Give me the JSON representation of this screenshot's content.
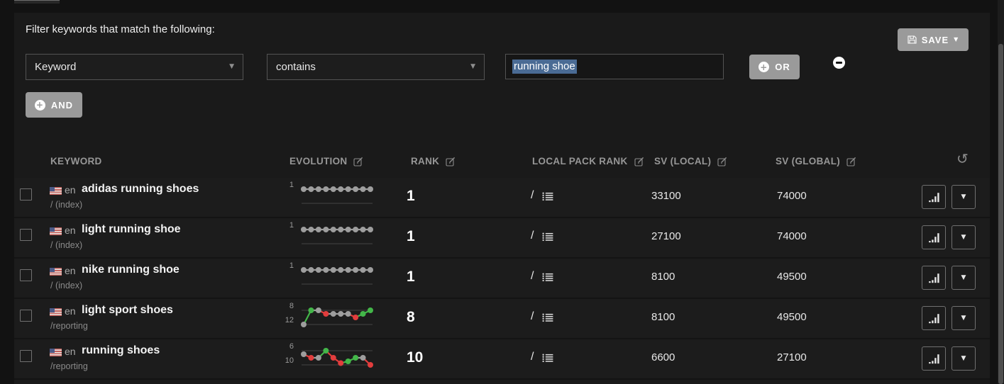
{
  "filter": {
    "title": "Filter keywords that match the following:",
    "field_select": {
      "value": "Keyword"
    },
    "operator_select": {
      "value": "contains"
    },
    "value_input": {
      "value": "running shoe"
    },
    "or_label": "OR",
    "and_label": "AND",
    "save_label": "SAVE"
  },
  "icons": {
    "plus": "+",
    "caret_down": "▼",
    "refresh": "↺"
  },
  "colors": {
    "selection_blue": "#4a6b94",
    "button_gray": "#9a9a9a",
    "spark_flat": "#9e9e9e",
    "spark_up": "#43b649",
    "spark_down": "#e23d3d",
    "row_bg": "#1c1c1c",
    "panel_bg": "#1a1a1a"
  },
  "table": {
    "headers": [
      {
        "label": "KEYWORD",
        "editable": false
      },
      {
        "label": "EVOLUTION",
        "editable": true
      },
      {
        "label": "RANK",
        "editable": true
      },
      {
        "label": "LOCAL PACK RANK",
        "editable": true
      },
      {
        "label": "SV (LOCAL)",
        "editable": true
      },
      {
        "label": "SV (GLOBAL)",
        "editable": true
      }
    ],
    "rows": [
      {
        "lang": "en",
        "keyword": "adidas running shoes",
        "path": "/ (index)",
        "rank": "1",
        "local_pack_rank": "/",
        "sv_local": "33100",
        "sv_global": "74000",
        "evolution": {
          "ylabels": [
            "1"
          ],
          "values": [
            1,
            1,
            1,
            1,
            1,
            1,
            1,
            1,
            1,
            1
          ],
          "colors": [
            "flat",
            "flat",
            "flat",
            "flat",
            "flat",
            "flat",
            "flat",
            "flat",
            "flat",
            "flat"
          ]
        }
      },
      {
        "lang": "en",
        "keyword": "light running shoe",
        "path": "/ (index)",
        "rank": "1",
        "local_pack_rank": "/",
        "sv_local": "27100",
        "sv_global": "74000",
        "evolution": {
          "ylabels": [
            "1"
          ],
          "values": [
            1,
            1,
            1,
            1,
            1,
            1,
            1,
            1,
            1,
            1
          ],
          "colors": [
            "flat",
            "flat",
            "flat",
            "flat",
            "flat",
            "flat",
            "flat",
            "flat",
            "flat",
            "flat"
          ]
        }
      },
      {
        "lang": "en",
        "keyword": "nike running shoe",
        "path": "/ (index)",
        "rank": "1",
        "local_pack_rank": "/",
        "sv_local": "8100",
        "sv_global": "49500",
        "evolution": {
          "ylabels": [
            "1"
          ],
          "values": [
            1,
            1,
            1,
            1,
            1,
            1,
            1,
            1,
            1,
            1
          ],
          "colors": [
            "flat",
            "flat",
            "flat",
            "flat",
            "flat",
            "flat",
            "flat",
            "flat",
            "flat",
            "flat"
          ]
        }
      },
      {
        "lang": "en",
        "keyword": "light sport shoes",
        "path": "/reporting",
        "rank": "8",
        "local_pack_rank": "/",
        "sv_local": "8100",
        "sv_global": "49500",
        "evolution": {
          "ylabels": [
            "8",
            "12"
          ],
          "values": [
            12,
            8,
            8,
            9,
            9,
            9,
            9,
            10,
            9,
            8
          ],
          "colors": [
            "flat",
            "up",
            "flat",
            "down",
            "flat",
            "flat",
            "flat",
            "down",
            "up",
            "up"
          ]
        }
      },
      {
        "lang": "en",
        "keyword": "running shoes",
        "path": "/reporting",
        "rank": "10",
        "local_pack_rank": "/",
        "sv_local": "6600",
        "sv_global": "27100",
        "evolution": {
          "ylabels": [
            "6",
            "10"
          ],
          "values": [
            7,
            8,
            8,
            6,
            8,
            9.5,
            9,
            8,
            8,
            10
          ],
          "colors": [
            "flat",
            "down",
            "flat",
            "up",
            "down",
            "down",
            "up",
            "up",
            "flat",
            "down"
          ]
        }
      }
    ]
  },
  "chart_data": [
    {
      "type": "line",
      "title": "adidas running shoes rank evolution",
      "ylabels": [
        1
      ],
      "values": [
        1,
        1,
        1,
        1,
        1,
        1,
        1,
        1,
        1,
        1
      ]
    },
    {
      "type": "line",
      "title": "light running shoe rank evolution",
      "ylabels": [
        1
      ],
      "values": [
        1,
        1,
        1,
        1,
        1,
        1,
        1,
        1,
        1,
        1
      ]
    },
    {
      "type": "line",
      "title": "nike running shoe rank evolution",
      "ylabels": [
        1
      ],
      "values": [
        1,
        1,
        1,
        1,
        1,
        1,
        1,
        1,
        1,
        1
      ]
    },
    {
      "type": "line",
      "title": "light sport shoes rank evolution",
      "ylabels": [
        8,
        12
      ],
      "values": [
        12,
        8,
        8,
        9,
        9,
        9,
        9,
        10,
        9,
        8
      ]
    },
    {
      "type": "line",
      "title": "running shoes rank evolution",
      "ylabels": [
        6,
        10
      ],
      "values": [
        7,
        8,
        8,
        6,
        8,
        9.5,
        9,
        8,
        8,
        10
      ]
    }
  ]
}
